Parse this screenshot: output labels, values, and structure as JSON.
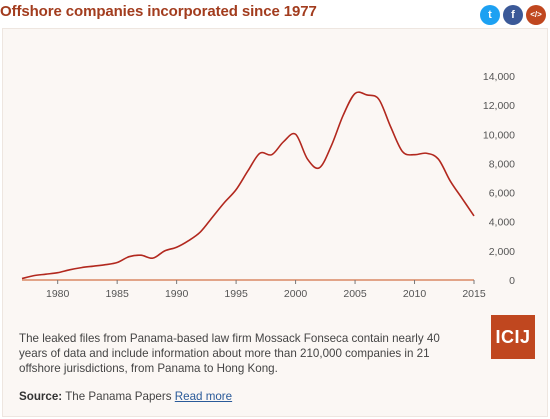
{
  "header": {
    "title": "Offshore companies incorporated since 1977"
  },
  "share": [
    {
      "name": "twitter",
      "glyph": "t",
      "color": "#1da1f2"
    },
    {
      "name": "facebook",
      "glyph": "f",
      "color": "#3b5998"
    },
    {
      "name": "embed",
      "glyph": "</>",
      "color": "#c0471f"
    }
  ],
  "chart_data": {
    "type": "line",
    "title": "Offshore companies incorporated since 1977",
    "xlabel": "",
    "ylabel": "",
    "xlim": [
      1977,
      2015
    ],
    "ylim": [
      0,
      14000
    ],
    "x_ticks": [
      1980,
      1985,
      1990,
      1995,
      2000,
      2005,
      2010,
      2015
    ],
    "y_ticks": [
      0,
      2000,
      4000,
      6000,
      8000,
      10000,
      12000,
      14000
    ],
    "y_tick_labels": [
      "0",
      "2,000",
      "4,000",
      "6,000",
      "8,000",
      "10,000",
      "12,000",
      "14,000"
    ],
    "grid": false,
    "color": "#b2281e",
    "baseline_color": "#e2a488",
    "series": [
      {
        "x": [
          1977,
          1978,
          1979,
          1980,
          1981,
          1982,
          1983,
          1984,
          1985,
          1986,
          1987,
          1988,
          1989,
          1990,
          1991,
          1992,
          1993,
          1994,
          1995,
          1996,
          1997,
          1998,
          1999,
          2000,
          2001,
          2002,
          2003,
          2004,
          2005,
          2006,
          2007,
          2008,
          2009,
          2010,
          2011,
          2012,
          2013,
          2014,
          2015
        ],
        "y": [
          100,
          300,
          400,
          500,
          700,
          850,
          950,
          1050,
          1200,
          1600,
          1700,
          1500,
          2000,
          2250,
          2700,
          3300,
          4300,
          5300,
          6200,
          7500,
          8700,
          8600,
          9500,
          10000,
          8300,
          7700,
          9200,
          11300,
          12800,
          12700,
          12400,
          10500,
          8800,
          8600,
          8700,
          8300,
          6800,
          5600,
          4400
        ]
      }
    ]
  },
  "description": "The leaked files from Panama-based law firm Mossack Fonseca contain nearly 40 years of data and include information about more than 210,000 companies in 21 offshore jurisdictions, from Panama to Hong Kong.",
  "source": {
    "label": "Source:",
    "text": "The Panama Papers",
    "link_text": "Read more"
  },
  "logo": {
    "text": "ICIJ",
    "color": "#c0471f"
  }
}
